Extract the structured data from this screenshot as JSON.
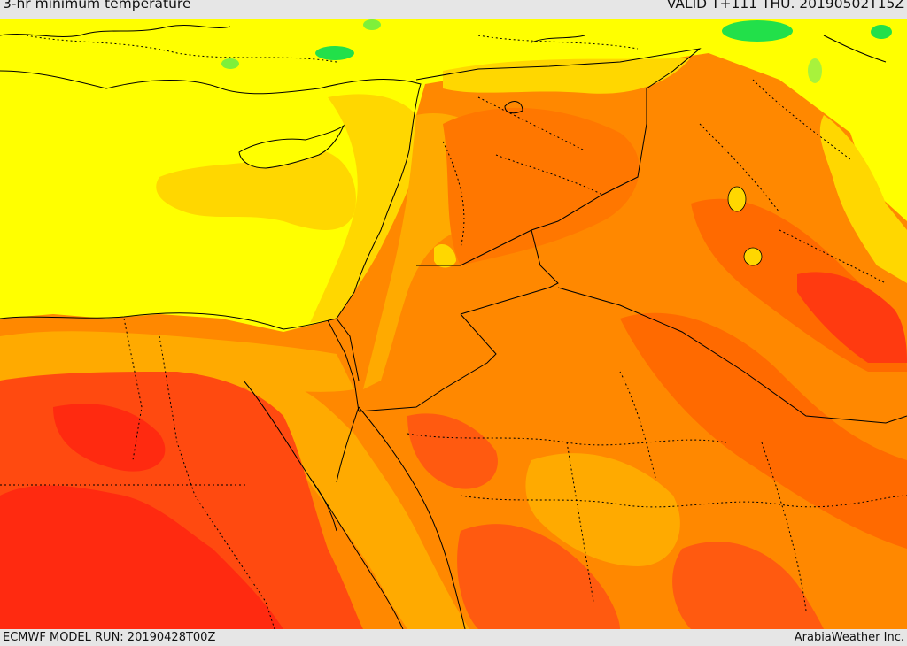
{
  "header": {
    "title": "3-hr minimum temperature",
    "valid_time": "VALID T+111 THU. 20190502T15Z"
  },
  "footer": {
    "model_run": "ECMWF MODEL RUN: 20190428T00Z",
    "provider": "ArabiaWeather Inc."
  },
  "map": {
    "region": "Eastern Mediterranean and Middle East",
    "field": "minimum temperature",
    "palette": {
      "green": "#22e04a",
      "light_green": "#a8f23c",
      "yellow": "#ffff00",
      "gold": "#ffd700",
      "amber": "#ffaa00",
      "orange": "#ff8800",
      "dark_orange": "#ff6a00",
      "red_orange": "#ff4a10",
      "red": "#ff2a10"
    }
  }
}
